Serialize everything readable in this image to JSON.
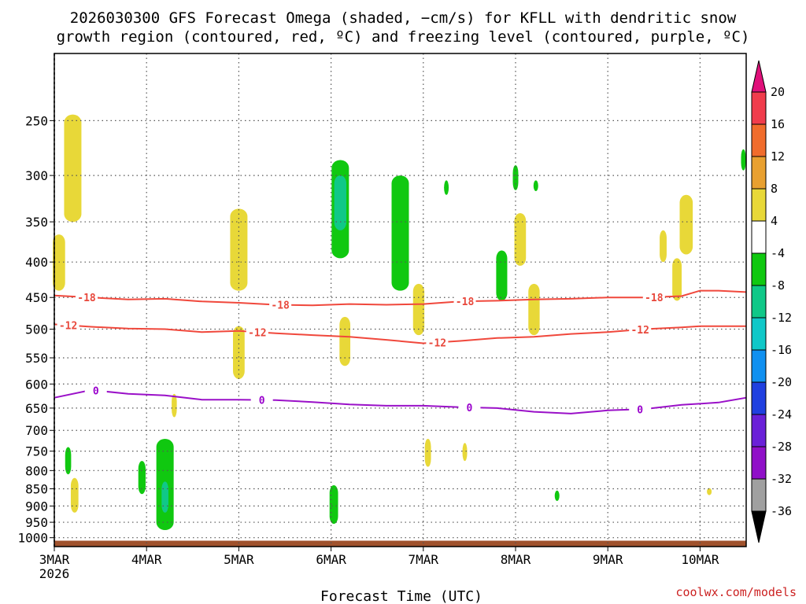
{
  "title_line1": "2026030300 GFS Forecast Omega (shaded, −cm/s) for KFLL with dendritic snow",
  "title_line2": "growth region (contoured, red, ºC) and freezing level (contoured, purple, ºC)",
  "xlabel": "Forecast Time (UTC)",
  "credit": "coolwx.com/models",
  "chart_data": {
    "type": "heatmap",
    "x_ticks": [
      {
        "label": "3MAR",
        "sub": "2026",
        "day": 0
      },
      {
        "label": "4MAR",
        "day": 1
      },
      {
        "label": "5MAR",
        "day": 2
      },
      {
        "label": "6MAR",
        "day": 3
      },
      {
        "label": "7MAR",
        "day": 4
      },
      {
        "label": "8MAR",
        "day": 5
      },
      {
        "label": "9MAR",
        "day": 6
      },
      {
        "label": "10MAR",
        "day": 7
      }
    ],
    "x_range_days": [
      0,
      7.5
    ],
    "y_ticks": [
      250,
      300,
      350,
      400,
      450,
      500,
      550,
      600,
      650,
      700,
      750,
      800,
      850,
      900,
      950,
      1000
    ],
    "y_range_hpa": [
      200,
      1030
    ],
    "y_scale": "log-pressure",
    "grid": true,
    "colorbar": {
      "levels": [
        "20",
        "16",
        "12",
        "8",
        "4",
        "-4",
        "-8",
        "-12",
        "-16",
        "-20",
        "-24",
        "-28",
        "-32",
        "-36"
      ],
      "colors": [
        "#f03c4c",
        "#f06c2c",
        "#e8a030",
        "#e8d838",
        "#ffffff",
        "#10c810",
        "#10c888",
        "#10c8c8",
        "#1090f0",
        "#2040e0",
        "#6a20d8",
        "#9010c8",
        "#a0a0a0"
      ],
      "top_color": "#e0107a",
      "bottom_color": "#000000"
    },
    "contours": [
      {
        "name": "-18",
        "color": "#f0483c",
        "labels": [
          {
            "text": "-18",
            "day": 0.35
          },
          {
            "text": "-18",
            "day": 2.45
          },
          {
            "text": "-18",
            "day": 4.45
          },
          {
            "text": "-18",
            "day": 6.5
          }
        ],
        "points": [
          [
            0,
            447
          ],
          [
            0.4,
            450
          ],
          [
            0.8,
            453
          ],
          [
            1.2,
            452
          ],
          [
            1.6,
            456
          ],
          [
            2.0,
            458
          ],
          [
            2.4,
            461
          ],
          [
            2.8,
            462
          ],
          [
            3.2,
            460
          ],
          [
            3.6,
            461
          ],
          [
            4.0,
            460
          ],
          [
            4.4,
            456
          ],
          [
            4.8,
            455
          ],
          [
            5.2,
            453
          ],
          [
            5.6,
            452
          ],
          [
            6.0,
            450
          ],
          [
            6.4,
            450
          ],
          [
            6.8,
            448
          ],
          [
            7.0,
            440
          ],
          [
            7.2,
            440
          ],
          [
            7.5,
            442
          ]
        ]
      },
      {
        "name": "-12",
        "color": "#f0483c",
        "labels": [
          {
            "text": "-12",
            "day": 0.15
          },
          {
            "text": "-12",
            "day": 2.2
          },
          {
            "text": "-12",
            "day": 4.15
          },
          {
            "text": "-12",
            "day": 6.35
          }
        ],
        "points": [
          [
            0,
            492
          ],
          [
            0.4,
            496
          ],
          [
            0.8,
            499
          ],
          [
            1.2,
            500
          ],
          [
            1.6,
            505
          ],
          [
            2.0,
            503
          ],
          [
            2.4,
            507
          ],
          [
            2.8,
            510
          ],
          [
            3.2,
            513
          ],
          [
            3.6,
            518
          ],
          [
            4.0,
            524
          ],
          [
            4.4,
            520
          ],
          [
            4.8,
            515
          ],
          [
            5.2,
            513
          ],
          [
            5.6,
            508
          ],
          [
            6.0,
            505
          ],
          [
            6.4,
            500
          ],
          [
            6.8,
            497
          ],
          [
            7.0,
            495
          ],
          [
            7.5,
            495
          ]
        ]
      },
      {
        "name": "0",
        "color": "#9a10c8",
        "labels": [
          {
            "text": "0",
            "day": 0.45
          },
          {
            "text": "0",
            "day": 2.25
          },
          {
            "text": "0",
            "day": 4.5
          },
          {
            "text": "0",
            "day": 6.35
          }
        ],
        "points": [
          [
            0,
            628
          ],
          [
            0.4,
            612
          ],
          [
            0.8,
            620
          ],
          [
            1.2,
            623
          ],
          [
            1.6,
            632
          ],
          [
            2.0,
            632
          ],
          [
            2.4,
            633
          ],
          [
            2.8,
            637
          ],
          [
            3.2,
            642
          ],
          [
            3.6,
            645
          ],
          [
            4.0,
            645
          ],
          [
            4.4,
            648
          ],
          [
            4.8,
            650
          ],
          [
            5.2,
            658
          ],
          [
            5.6,
            662
          ],
          [
            6.0,
            655
          ],
          [
            6.4,
            652
          ],
          [
            6.8,
            643
          ],
          [
            7.2,
            638
          ],
          [
            7.5,
            628
          ]
        ]
      }
    ],
    "shaded_blobs": [
      {
        "value": 4,
        "day": 0.05,
        "p_top": 365,
        "p_bot": 440
      },
      {
        "value": 4,
        "day": 0.2,
        "p_top": 245,
        "p_bot": 350
      },
      {
        "value": 4,
        "day": 2.0,
        "p_top": 335,
        "p_bot": 440
      },
      {
        "value": 4,
        "day": 2.0,
        "p_top": 495,
        "p_bot": 590
      },
      {
        "value": -8,
        "day": 3.1,
        "p_top": 285,
        "p_bot": 395
      },
      {
        "value": -12,
        "day": 3.1,
        "p_top": 300,
        "p_bot": 360
      },
      {
        "value": -4,
        "day": 3.05,
        "p_top": 400,
        "p_bot": 530
      },
      {
        "value": 4,
        "day": 3.15,
        "p_top": 480,
        "p_bot": 565
      },
      {
        "value": -8,
        "day": 3.75,
        "p_top": 300,
        "p_bot": 440
      },
      {
        "value": 4,
        "day": 3.95,
        "p_top": 430,
        "p_bot": 510
      },
      {
        "value": 4,
        "day": 4.05,
        "p_top": 720,
        "p_bot": 790
      },
      {
        "value": -8,
        "day": 4.85,
        "p_top": 385,
        "p_bot": 455
      },
      {
        "value": 4,
        "day": 5.05,
        "p_top": 340,
        "p_bot": 405
      },
      {
        "value": 4,
        "day": 5.2,
        "p_top": 430,
        "p_bot": 510
      },
      {
        "value": 4,
        "day": 6.6,
        "p_top": 360,
        "p_bot": 400
      },
      {
        "value": 4,
        "day": 6.85,
        "p_top": 320,
        "p_bot": 390
      },
      {
        "value": 4,
        "day": 6.75,
        "p_top": 395,
        "p_bot": 455
      },
      {
        "value": -8,
        "day": 7.47,
        "p_top": 275,
        "p_bot": 295
      },
      {
        "value": -8,
        "day": 0.15,
        "p_top": 740,
        "p_bot": 810
      },
      {
        "value": 4,
        "day": 0.22,
        "p_top": 820,
        "p_bot": 920
      },
      {
        "value": -8,
        "day": 0.95,
        "p_top": 775,
        "p_bot": 865
      },
      {
        "value": -8,
        "day": 1.2,
        "p_top": 720,
        "p_bot": 975
      },
      {
        "value": -12,
        "day": 1.2,
        "p_top": 830,
        "p_bot": 920
      },
      {
        "value": -8,
        "day": 3.03,
        "p_top": 840,
        "p_bot": 955
      },
      {
        "value": 4,
        "day": 1.3,
        "p_top": 620,
        "p_bot": 670
      },
      {
        "value": 4,
        "day": 4.45,
        "p_top": 730,
        "p_bot": 775
      },
      {
        "value": -8,
        "day": 5.45,
        "p_top": 855,
        "p_bot": 885
      },
      {
        "value": 4,
        "day": 7.1,
        "p_top": 848,
        "p_bot": 868
      },
      {
        "value": -8,
        "day": 5.22,
        "p_top": 305,
        "p_bot": 316
      },
      {
        "value": -8,
        "day": 4.25,
        "p_top": 305,
        "p_bot": 320
      },
      {
        "value": -8,
        "day": 5.0,
        "p_top": 290,
        "p_bot": 315
      }
    ]
  }
}
